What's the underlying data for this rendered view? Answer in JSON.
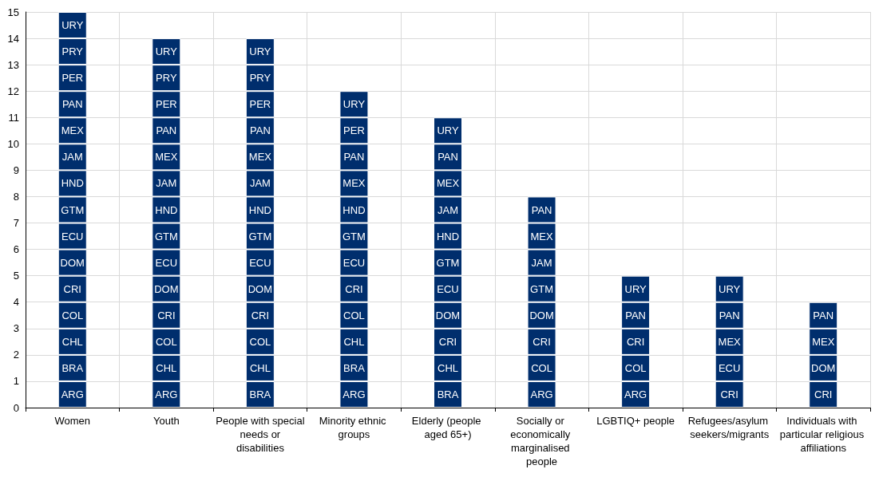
{
  "chart_data": {
    "type": "bar",
    "stacked": true,
    "grid": true,
    "categories": [
      "Women",
      "Youth",
      "People with special needs or disabilities",
      "Minority ethnic groups",
      "Elderly (people aged 65+)",
      "Socially or economically marginalised people",
      "LGBTIQ+ people",
      "Refugees/asylum seekers/migrants",
      "Individuals with particular religious affiliations"
    ],
    "ylim": [
      0,
      15
    ],
    "yticks": [
      0,
      1,
      2,
      3,
      4,
      5,
      6,
      7,
      8,
      9,
      10,
      11,
      12,
      13,
      14,
      15
    ],
    "series": [
      {
        "color": "#002e6d",
        "values": [
          1,
          1,
          1,
          1,
          1,
          1,
          1,
          1,
          1
        ],
        "value_labels": [
          "ARG",
          "ARG",
          "BRA",
          "ARG",
          "BRA",
          "ARG",
          "ARG",
          "CRI",
          "CRI"
        ]
      },
      {
        "color": "#002e6d",
        "values": [
          1,
          1,
          1,
          1,
          1,
          1,
          1,
          1,
          1
        ],
        "value_labels": [
          "BRA",
          "CHL",
          "CHL",
          "BRA",
          "CHL",
          "COL",
          "COL",
          "ECU",
          "DOM"
        ]
      },
      {
        "color": "#002e6d",
        "values": [
          1,
          1,
          1,
          1,
          1,
          1,
          1,
          1,
          1
        ],
        "value_labels": [
          "CHL",
          "COL",
          "COL",
          "CHL",
          "CRI",
          "CRI",
          "CRI",
          "MEX",
          "MEX"
        ]
      },
      {
        "color": "#002e6d",
        "values": [
          1,
          1,
          1,
          1,
          1,
          1,
          1,
          1,
          1
        ],
        "value_labels": [
          "COL",
          "CRI",
          "CRI",
          "COL",
          "DOM",
          "DOM",
          "PAN",
          "PAN",
          "PAN"
        ]
      },
      {
        "color": "#002e6d",
        "values": [
          1,
          1,
          1,
          1,
          1,
          1,
          1,
          1,
          null
        ],
        "value_labels": [
          "CRI",
          "DOM",
          "DOM",
          "CRI",
          "ECU",
          "GTM",
          "URY",
          "URY",
          null
        ]
      },
      {
        "color": "#002e6d",
        "values": [
          1,
          1,
          1,
          1,
          1,
          1,
          null,
          null,
          null
        ],
        "value_labels": [
          "DOM",
          "ECU",
          "ECU",
          "ECU",
          "GTM",
          "JAM",
          null,
          null,
          null
        ]
      },
      {
        "color": "#002e6d",
        "values": [
          1,
          1,
          1,
          1,
          1,
          1,
          null,
          null,
          null
        ],
        "value_labels": [
          "ECU",
          "GTM",
          "GTM",
          "GTM",
          "HND",
          "MEX",
          null,
          null,
          null
        ]
      },
      {
        "color": "#002e6d",
        "values": [
          1,
          1,
          1,
          1,
          1,
          1,
          null,
          null,
          null
        ],
        "value_labels": [
          "GTM",
          "HND",
          "HND",
          "HND",
          "JAM",
          "PAN",
          null,
          null,
          null
        ]
      },
      {
        "color": "#002e6d",
        "values": [
          1,
          1,
          1,
          1,
          1,
          null,
          null,
          null,
          null
        ],
        "value_labels": [
          "HND",
          "JAM",
          "JAM",
          "MEX",
          "MEX",
          null,
          null,
          null,
          null
        ]
      },
      {
        "color": "#002e6d",
        "values": [
          1,
          1,
          1,
          1,
          1,
          null,
          null,
          null,
          null
        ],
        "value_labels": [
          "JAM",
          "MEX",
          "MEX",
          "PAN",
          "PAN",
          null,
          null,
          null,
          null
        ]
      },
      {
        "color": "#002e6d",
        "values": [
          1,
          1,
          1,
          1,
          1,
          null,
          null,
          null,
          null
        ],
        "value_labels": [
          "MEX",
          "PAN",
          "PAN",
          "PER",
          "URY",
          null,
          null,
          null,
          null
        ]
      },
      {
        "color": "#002e6d",
        "values": [
          1,
          1,
          1,
          1,
          null,
          null,
          null,
          null,
          null
        ],
        "value_labels": [
          "PAN",
          "PER",
          "PER",
          "URY",
          null,
          null,
          null,
          null,
          null
        ]
      },
      {
        "color": "#002e6d",
        "values": [
          1,
          1,
          1,
          null,
          null,
          null,
          null,
          null,
          null
        ],
        "value_labels": [
          "PER",
          "PRY",
          "PRY",
          null,
          null,
          null,
          null,
          null,
          null
        ]
      },
      {
        "color": "#002e6d",
        "values": [
          1,
          1,
          1,
          null,
          null,
          null,
          null,
          null,
          null
        ],
        "value_labels": [
          "PRY",
          "URY",
          "URY",
          null,
          null,
          null,
          null,
          null,
          null
        ]
      },
      {
        "color": "#002e6d",
        "values": [
          1,
          null,
          null,
          null,
          null,
          null,
          null,
          null,
          null
        ],
        "value_labels": [
          "URY",
          null,
          null,
          null,
          null,
          null,
          null,
          null,
          null
        ]
      }
    ]
  }
}
